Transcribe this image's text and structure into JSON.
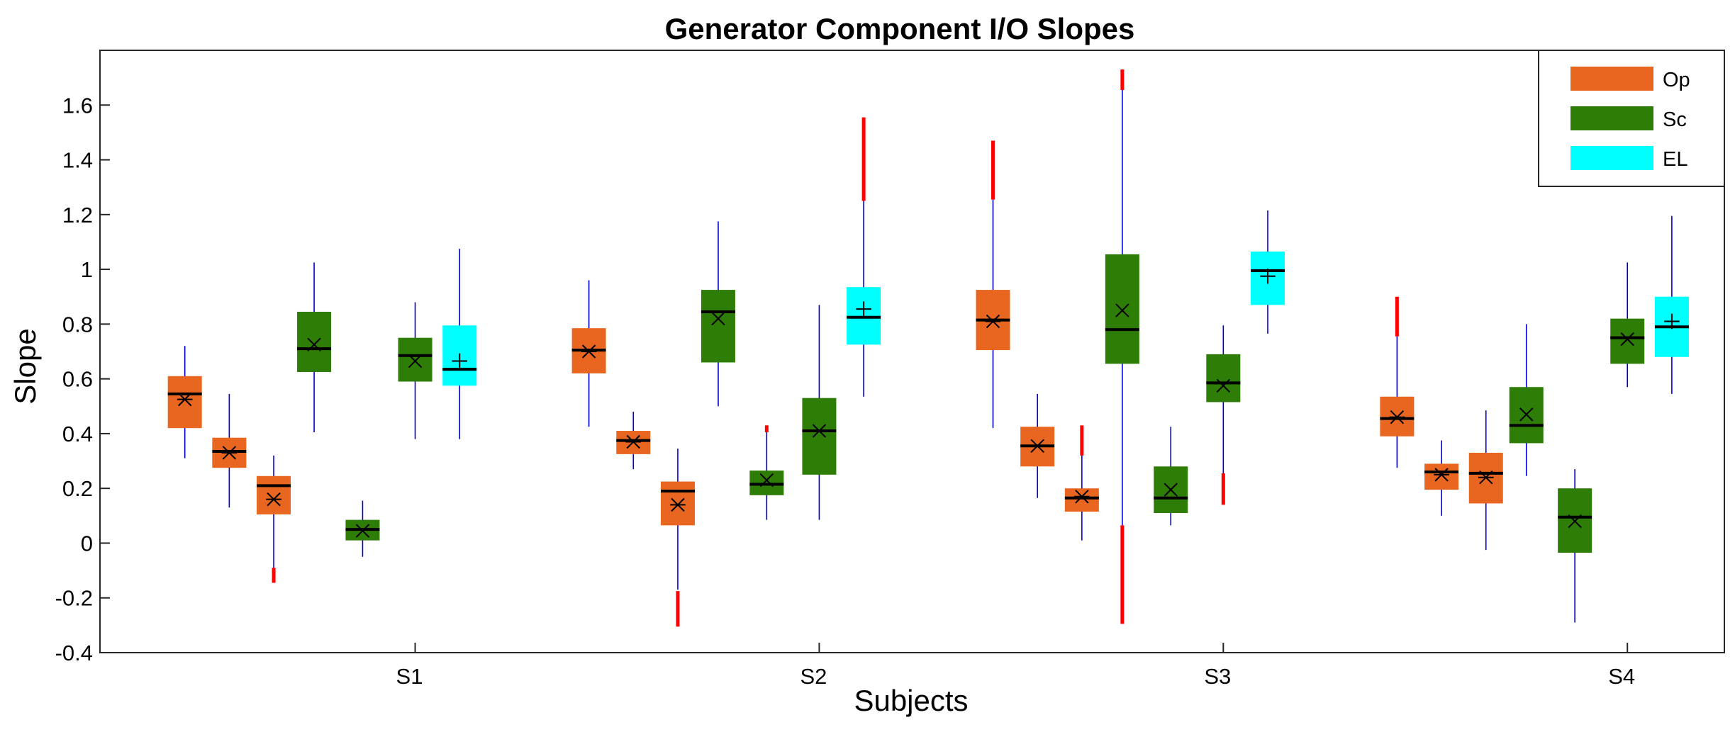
{
  "chart_data": {
    "type": "boxplot",
    "title": "Generator Component I/O Slopes",
    "xlabel": "Subjects",
    "ylabel": "Slope",
    "ylim": [
      -0.4,
      1.8
    ],
    "yticks": [
      -0.4,
      -0.2,
      0,
      0.2,
      0.4,
      0.6,
      0.8,
      1,
      1.2,
      1.4,
      1.6
    ],
    "ytick_labels": [
      "-0.4",
      "-0.2",
      "0",
      "0.2",
      "0.4",
      "0.6",
      "0.8",
      "1",
      "1.2",
      "1.4",
      "1.6"
    ],
    "categories": [
      "S1",
      "S2",
      "S3",
      "S4"
    ],
    "category_positions": [
      1,
      2,
      3,
      4
    ],
    "xlim": [
      0.22,
      4.24
    ],
    "legend_position": "top-right",
    "series": [
      {
        "name": "Op",
        "color": "#E8661F"
      },
      {
        "name": "Sc",
        "color": "#2E7D07"
      },
      {
        "name": "EL",
        "color": "#00FFFF"
      }
    ],
    "outlier_color": "#FF0000",
    "whisker_color": "#0000CC",
    "boxes": [
      {
        "subject": "S1",
        "series": "Op",
        "x": 0.43,
        "q1": 0.42,
        "q3": 0.61,
        "median": 0.545,
        "mean": 0.525,
        "wlow": 0.31,
        "whigh": 0.72,
        "olow": null,
        "ohigh": [
          0.545,
          0.555
        ],
        "marker": "asterisk"
      },
      {
        "subject": "S1",
        "series": "Op",
        "x": 0.54,
        "q1": 0.275,
        "q3": 0.385,
        "median": 0.335,
        "mean": 0.33,
        "wlow": 0.13,
        "whigh": 0.545,
        "olow": null,
        "ohigh": null,
        "marker": "asterisk"
      },
      {
        "subject": "S1",
        "series": "Op",
        "x": 0.65,
        "q1": 0.105,
        "q3": 0.245,
        "median": 0.21,
        "mean": 0.16,
        "wlow": -0.09,
        "whigh": 0.32,
        "olow": [
          -0.145,
          -0.09
        ],
        "ohigh": null,
        "marker": "asterisk"
      },
      {
        "subject": "S1",
        "series": "Sc",
        "x": 0.75,
        "q1": 0.625,
        "q3": 0.845,
        "median": 0.71,
        "mean": 0.725,
        "wlow": 0.405,
        "whigh": 1.025,
        "olow": null,
        "ohigh": null,
        "marker": "x"
      },
      {
        "subject": "S1",
        "series": "Sc",
        "x": 0.87,
        "q1": 0.01,
        "q3": 0.085,
        "median": 0.05,
        "mean": 0.045,
        "wlow": -0.05,
        "whigh": 0.155,
        "olow": null,
        "ohigh": null,
        "marker": "x"
      },
      {
        "subject": "S1",
        "series": "Sc",
        "x": 1.0,
        "q1": 0.59,
        "q3": 0.75,
        "median": 0.685,
        "mean": 0.665,
        "wlow": 0.38,
        "whigh": 0.88,
        "olow": null,
        "ohigh": null,
        "marker": "x"
      },
      {
        "subject": "S1",
        "series": "EL",
        "x": 1.11,
        "q1": 0.575,
        "q3": 0.795,
        "median": 0.635,
        "mean": 0.665,
        "wlow": 0.38,
        "whigh": 1.075,
        "olow": null,
        "ohigh": null,
        "marker": "plus"
      },
      {
        "subject": "S2",
        "series": "Op",
        "x": 1.43,
        "q1": 0.62,
        "q3": 0.785,
        "median": 0.705,
        "mean": 0.7,
        "wlow": 0.425,
        "whigh": 0.96,
        "olow": null,
        "ohigh": null,
        "marker": "asterisk"
      },
      {
        "subject": "S2",
        "series": "Op",
        "x": 1.54,
        "q1": 0.325,
        "q3": 0.41,
        "median": 0.375,
        "mean": 0.37,
        "wlow": 0.27,
        "whigh": 0.48,
        "olow": null,
        "ohigh": null,
        "marker": "asterisk"
      },
      {
        "subject": "S2",
        "series": "Op",
        "x": 1.65,
        "q1": 0.065,
        "q3": 0.225,
        "median": 0.19,
        "mean": 0.14,
        "wlow": -0.17,
        "whigh": 0.345,
        "olow": [
          -0.305,
          -0.175
        ],
        "ohigh": null,
        "marker": "asterisk"
      },
      {
        "subject": "S2",
        "series": "Sc",
        "x": 1.75,
        "q1": 0.66,
        "q3": 0.925,
        "median": 0.845,
        "mean": 0.82,
        "wlow": 0.5,
        "whigh": 1.175,
        "olow": null,
        "ohigh": null,
        "marker": "x"
      },
      {
        "subject": "S2",
        "series": "Sc",
        "x": 1.87,
        "q1": 0.175,
        "q3": 0.265,
        "median": 0.215,
        "mean": 0.23,
        "wlow": 0.085,
        "whigh": 0.41,
        "olow": null,
        "ohigh": [
          0.405,
          0.43
        ],
        "marker": "x"
      },
      {
        "subject": "S2",
        "series": "Sc",
        "x": 2.0,
        "q1": 0.25,
        "q3": 0.53,
        "median": 0.41,
        "mean": 0.41,
        "wlow": 0.085,
        "whigh": 0.87,
        "olow": null,
        "ohigh": null,
        "marker": "x"
      },
      {
        "subject": "S2",
        "series": "EL",
        "x": 2.11,
        "q1": 0.725,
        "q3": 0.935,
        "median": 0.825,
        "mean": 0.855,
        "wlow": 0.535,
        "whigh": 1.25,
        "olow": null,
        "ohigh": [
          1.25,
          1.555
        ],
        "marker": "plus"
      },
      {
        "subject": "S3",
        "series": "Op",
        "x": 2.43,
        "q1": 0.705,
        "q3": 0.925,
        "median": 0.815,
        "mean": 0.81,
        "wlow": 0.42,
        "whigh": 1.255,
        "olow": null,
        "ohigh": [
          1.255,
          1.47
        ],
        "marker": "asterisk"
      },
      {
        "subject": "S3",
        "series": "Op",
        "x": 2.54,
        "q1": 0.28,
        "q3": 0.425,
        "median": 0.355,
        "mean": 0.355,
        "wlow": 0.165,
        "whigh": 0.545,
        "olow": null,
        "ohigh": null,
        "marker": "asterisk"
      },
      {
        "subject": "S3",
        "series": "Op",
        "x": 2.65,
        "q1": 0.115,
        "q3": 0.2,
        "median": 0.165,
        "mean": 0.17,
        "wlow": 0.01,
        "whigh": 0.32,
        "olow": null,
        "ohigh": [
          0.32,
          0.43
        ],
        "marker": "asterisk"
      },
      {
        "subject": "S3",
        "series": "Sc",
        "x": 2.75,
        "q1": 0.655,
        "q3": 1.055,
        "median": 0.78,
        "mean": 0.85,
        "wlow": 0.065,
        "whigh": 1.655,
        "olow": [
          -0.295,
          0.065
        ],
        "ohigh": [
          1.655,
          1.73
        ],
        "marker": "x"
      },
      {
        "subject": "S3",
        "series": "Sc",
        "x": 2.87,
        "q1": 0.11,
        "q3": 0.28,
        "median": 0.165,
        "mean": 0.195,
        "wlow": 0.065,
        "whigh": 0.425,
        "olow": null,
        "ohigh": null,
        "marker": "x"
      },
      {
        "subject": "S3",
        "series": "Sc",
        "x": 3.0,
        "q1": 0.515,
        "q3": 0.69,
        "median": 0.585,
        "mean": 0.575,
        "wlow": 0.255,
        "whigh": 0.795,
        "olow": [
          0.14,
          0.255
        ],
        "ohigh": null,
        "marker": "x"
      },
      {
        "subject": "S3",
        "series": "EL",
        "x": 3.11,
        "q1": 0.87,
        "q3": 1.065,
        "median": 0.995,
        "mean": 0.975,
        "wlow": 0.765,
        "whigh": 1.215,
        "olow": null,
        "ohigh": null,
        "marker": "plus"
      },
      {
        "subject": "S4",
        "series": "Op",
        "x": 3.43,
        "q1": 0.39,
        "q3": 0.535,
        "median": 0.455,
        "mean": 0.46,
        "wlow": 0.275,
        "whigh": 0.755,
        "olow": null,
        "ohigh": [
          0.755,
          0.9
        ],
        "marker": "asterisk"
      },
      {
        "subject": "S4",
        "series": "Op",
        "x": 3.54,
        "q1": 0.195,
        "q3": 0.29,
        "median": 0.26,
        "mean": 0.25,
        "wlow": 0.1,
        "whigh": 0.375,
        "olow": null,
        "ohigh": null,
        "marker": "asterisk"
      },
      {
        "subject": "S4",
        "series": "Op",
        "x": 3.65,
        "q1": 0.145,
        "q3": 0.33,
        "median": 0.255,
        "mean": 0.24,
        "wlow": -0.025,
        "whigh": 0.485,
        "olow": null,
        "ohigh": null,
        "marker": "asterisk"
      },
      {
        "subject": "S4",
        "series": "Sc",
        "x": 3.75,
        "q1": 0.365,
        "q3": 0.57,
        "median": 0.43,
        "mean": 0.47,
        "wlow": 0.245,
        "whigh": 0.8,
        "olow": null,
        "ohigh": null,
        "marker": "x"
      },
      {
        "subject": "S4",
        "series": "Sc",
        "x": 3.87,
        "q1": -0.035,
        "q3": 0.2,
        "median": 0.095,
        "mean": 0.08,
        "wlow": -0.29,
        "whigh": 0.27,
        "olow": null,
        "ohigh": null,
        "marker": "x"
      },
      {
        "subject": "S4",
        "series": "Sc",
        "x": 4.0,
        "q1": 0.655,
        "q3": 0.82,
        "median": 0.75,
        "mean": 0.745,
        "wlow": 0.57,
        "whigh": 1.025,
        "olow": null,
        "ohigh": null,
        "marker": "x"
      },
      {
        "subject": "S4",
        "series": "EL",
        "x": 4.11,
        "q1": 0.68,
        "q3": 0.9,
        "median": 0.79,
        "mean": 0.81,
        "wlow": 0.545,
        "whigh": 1.195,
        "olow": null,
        "ohigh": null,
        "marker": "plus"
      }
    ]
  }
}
